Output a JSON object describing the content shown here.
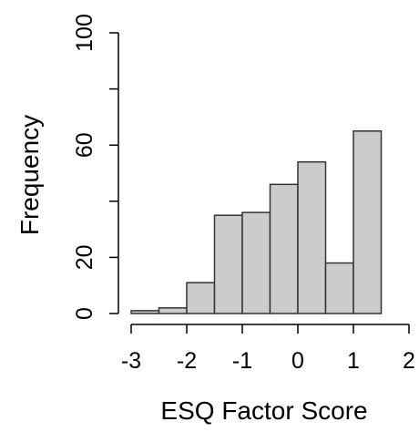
{
  "chart_data": {
    "type": "bar",
    "title": "",
    "xlabel": "ESQ Factor Score",
    "ylabel": "Frequency",
    "bins": [
      {
        "start": -3.0,
        "end": -2.5,
        "count": 1
      },
      {
        "start": -2.5,
        "end": -2.0,
        "count": 2
      },
      {
        "start": -2.0,
        "end": -1.5,
        "count": 11
      },
      {
        "start": -1.5,
        "end": -1.0,
        "count": 35
      },
      {
        "start": -1.0,
        "end": -0.5,
        "count": 36
      },
      {
        "start": -0.5,
        "end": 0.0,
        "count": 46
      },
      {
        "start": 0.0,
        "end": 0.5,
        "count": 54
      },
      {
        "start": 0.5,
        "end": 1.0,
        "count": 18
      },
      {
        "start": 1.0,
        "end": 1.5,
        "count": 65
      }
    ],
    "xlim": [
      -3,
      2
    ],
    "ylim": [
      0,
      100
    ],
    "x_ticks": [
      "-3",
      "-2",
      "-1",
      "0",
      "1",
      "2"
    ],
    "y_ticks": [
      "0",
      "20",
      "60",
      "100"
    ],
    "y_minor_ticks": [
      40,
      80
    ],
    "grid": false,
    "colors": {
      "bar_fill": "#cccccc",
      "bar_stroke": "#333333",
      "axis": "#000000"
    }
  }
}
